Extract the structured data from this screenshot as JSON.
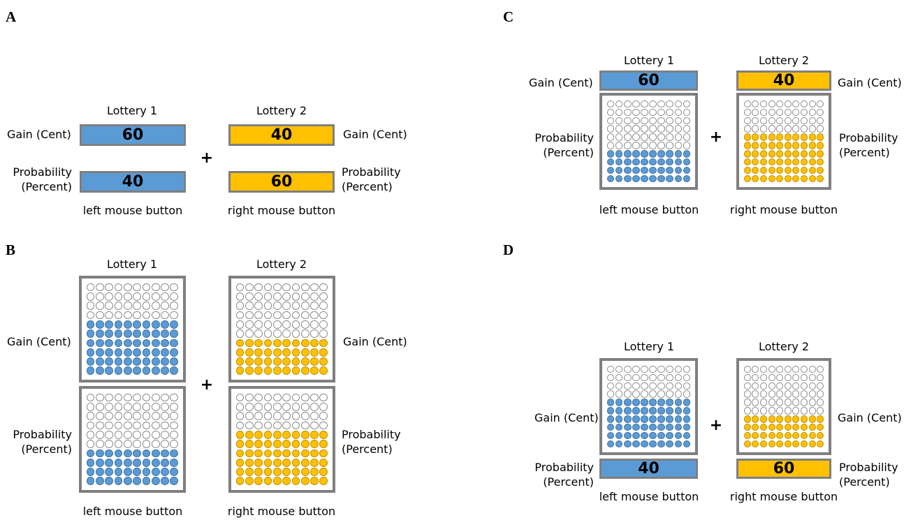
{
  "colors": {
    "blue": "#5b9bd5",
    "gold": "#ffc000",
    "frame": "#7f7f7f"
  },
  "common": {
    "lottery1": "Lottery 1",
    "lottery2": "Lottery 2",
    "gain": "Gain (Cent)",
    "prob_line1": "Probability",
    "prob_line2": "(Percent)",
    "left_button": "left mouse button",
    "right_button": "right mouse button",
    "plus": "+"
  },
  "panels": {
    "A": {
      "letter": "A",
      "gain1": "60",
      "prob1": "40",
      "gain2": "40",
      "prob2": "60"
    },
    "B": {
      "letter": "B",
      "gain1": 60,
      "prob1": 40,
      "gain2": 40,
      "prob2": 60
    },
    "C": {
      "letter": "C",
      "gain1": "60",
      "prob1": 40,
      "gain2": "40",
      "prob2": 60
    },
    "D": {
      "letter": "D",
      "gain1": 60,
      "prob1": "40",
      "gain2": 40,
      "prob2": "60"
    }
  }
}
